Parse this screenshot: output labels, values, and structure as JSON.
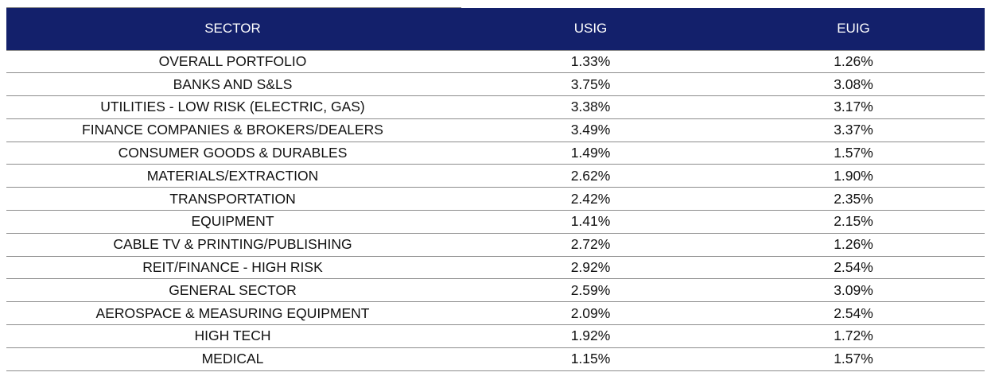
{
  "table": {
    "columns": [
      "SECTOR",
      "USIG",
      "EUIG"
    ],
    "rows": [
      {
        "sector": "OVERALL PORTFOLIO",
        "usig": "1.33%",
        "euig": "1.26%"
      },
      {
        "sector": "BANKS AND S&LS",
        "usig": "3.75%",
        "euig": "3.08%"
      },
      {
        "sector": "UTILITIES - LOW RISK (ELECTRIC, GAS)",
        "usig": "3.38%",
        "euig": "3.17%"
      },
      {
        "sector": "FINANCE COMPANIES & BROKERS/DEALERS",
        "usig": "3.49%",
        "euig": "3.37%"
      },
      {
        "sector": "CONSUMER GOODS & DURABLES",
        "usig": "1.49%",
        "euig": "1.57%"
      },
      {
        "sector": "MATERIALS/EXTRACTION",
        "usig": "2.62%",
        "euig": "1.90%"
      },
      {
        "sector": "TRANSPORTATION",
        "usig": "2.42%",
        "euig": "2.35%"
      },
      {
        "sector": "EQUIPMENT",
        "usig": "1.41%",
        "euig": "2.15%"
      },
      {
        "sector": "CABLE TV & PRINTING/PUBLISHING",
        "usig": "2.72%",
        "euig": "1.26%"
      },
      {
        "sector": "REIT/FINANCE - HIGH RISK",
        "usig": "2.92%",
        "euig": "2.54%"
      },
      {
        "sector": "GENERAL SECTOR",
        "usig": "2.59%",
        "euig": "3.09%"
      },
      {
        "sector": "AEROSPACE & MEASURING EQUIPMENT",
        "usig": "2.09%",
        "euig": "2.54%"
      },
      {
        "sector": "HIGH TECH",
        "usig": "1.92%",
        "euig": "1.72%"
      },
      {
        "sector": "MEDICAL",
        "usig": "1.15%",
        "euig": "1.57%"
      }
    ]
  },
  "colors": {
    "header_background": "#13206b",
    "header_text": "#ffffff",
    "row_divider": "#8c8c8c"
  }
}
